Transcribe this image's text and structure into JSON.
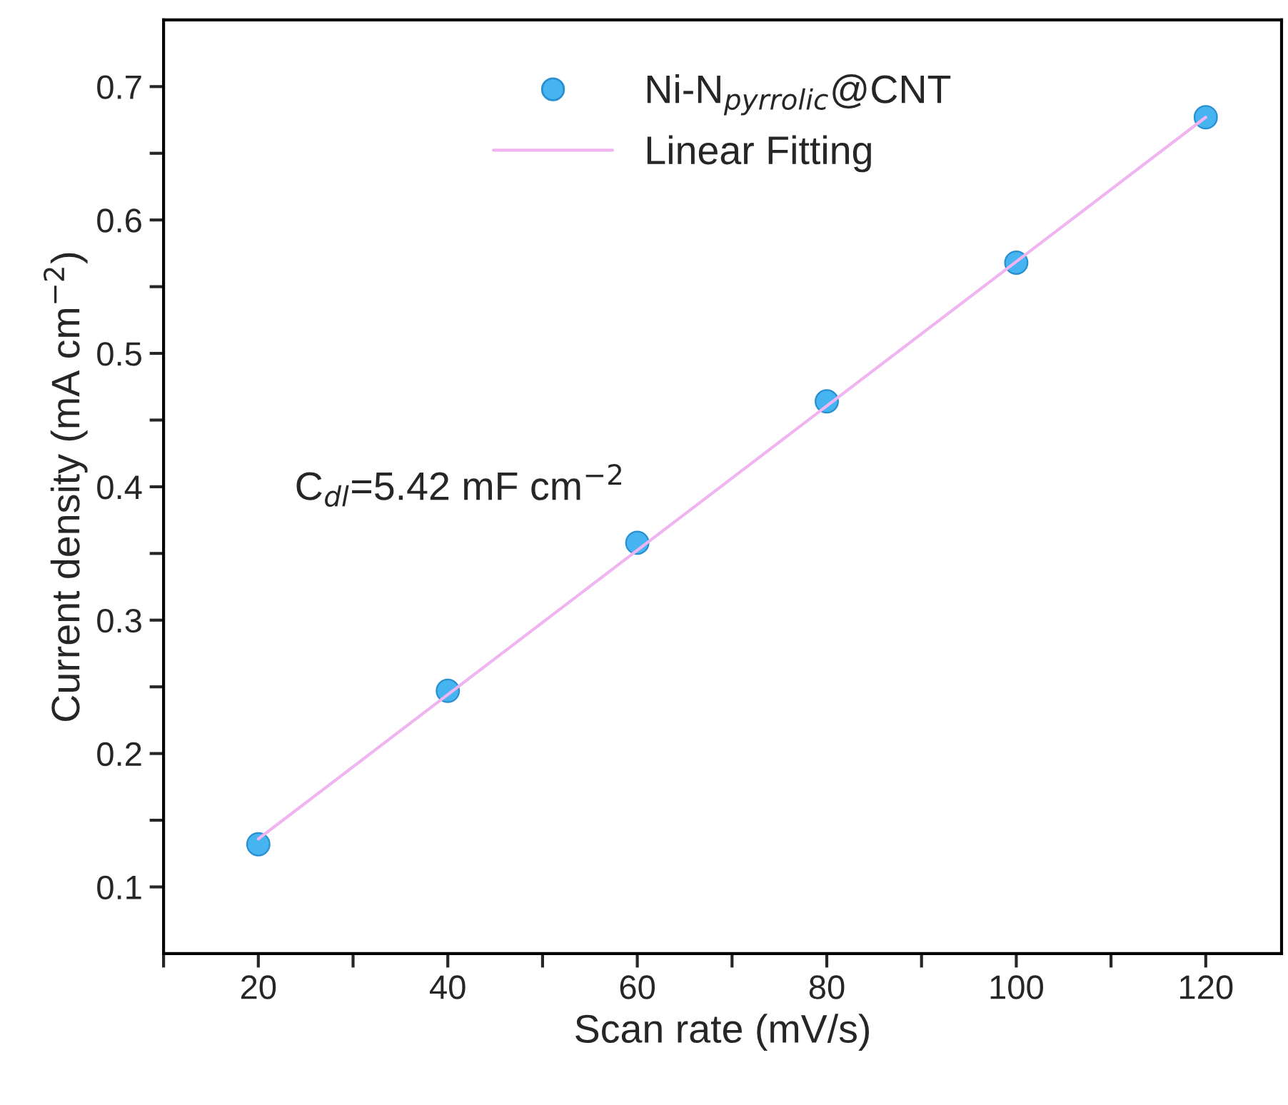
{
  "chart_data": {
    "type": "scatter",
    "xlabel": "Scan rate (mV/s)",
    "ylabel": "Current density (mA cm$^{−2}$)",
    "x": [
      20,
      40,
      60,
      80,
      100,
      120
    ],
    "series": [
      {
        "name": "Ni-N$_{pyrrolic}$@CNT",
        "color": "#45b4f0",
        "marker": "circle",
        "values": [
          0.132,
          0.247,
          0.358,
          0.464,
          0.568,
          0.677
        ]
      },
      {
        "name": "Linear Fitting",
        "type": "line",
        "color": "#f0b4f0",
        "x": [
          20,
          120
        ],
        "values": [
          0.136,
          0.677
        ],
        "line_style": "solid"
      }
    ],
    "xlim": [
      10,
      128
    ],
    "ylim": [
      0.05,
      0.75
    ],
    "xticks": [
      {
        "value": 10,
        "label": null
      },
      20,
      {
        "value": 30,
        "label": null
      },
      40,
      {
        "value": 50,
        "label": null
      },
      60,
      {
        "value": 70,
        "label": null
      },
      80,
      {
        "value": 90,
        "label": null
      },
      100,
      {
        "value": 110,
        "label": null
      },
      120
    ],
    "yticks": [
      0.1,
      {
        "value": 0.15,
        "label": null
      },
      0.2,
      {
        "value": 0.25,
        "label": null
      },
      0.3,
      {
        "value": 0.35,
        "label": null
      },
      0.4,
      {
        "value": 0.45,
        "label": null
      },
      0.5,
      {
        "value": 0.55,
        "label": null
      },
      0.6,
      {
        "value": 0.65,
        "label": null
      },
      0.7
    ],
    "annotations": [
      "C$_{dl}$=5.42 mF cm$^{−2}$"
    ],
    "legend": "top",
    "grid": false
  }
}
